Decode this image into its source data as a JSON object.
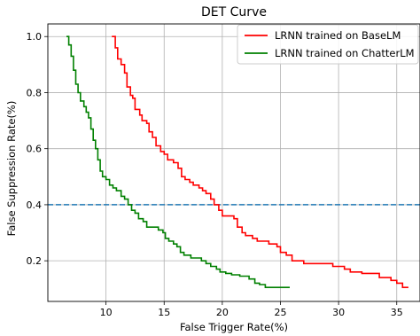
{
  "chart_data": {
    "type": "line",
    "title": "DET Curve",
    "xlabel": "False Trigger Rate(%)",
    "ylabel": "False Suppression Rate(%)",
    "xlim": [
      5.0,
      37.0
    ],
    "ylim": [
      0.055,
      1.045
    ],
    "xticks": [
      10,
      15,
      20,
      25,
      30,
      35
    ],
    "yticks": [
      0.2,
      0.4,
      0.6,
      0.8,
      1.0
    ],
    "xtick_labels": [
      "10",
      "15",
      "20",
      "25",
      "30",
      "35"
    ],
    "ytick_labels": [
      "0.2",
      "0.4",
      "0.6",
      "0.8",
      "1.0"
    ],
    "grid": true,
    "legend_position": "top-right",
    "threshold_line": {
      "y": 0.4,
      "color": "#1f77b4",
      "style": "dashed"
    },
    "series": [
      {
        "name": "LRNN trained on BaseLM",
        "color": "#ff0000",
        "points": [
          [
            10.5,
            1.0
          ],
          [
            10.8,
            0.96
          ],
          [
            11.0,
            0.92
          ],
          [
            11.3,
            0.9
          ],
          [
            11.6,
            0.87
          ],
          [
            11.8,
            0.82
          ],
          [
            12.1,
            0.79
          ],
          [
            12.3,
            0.78
          ],
          [
            12.5,
            0.74
          ],
          [
            12.9,
            0.72
          ],
          [
            13.1,
            0.7
          ],
          [
            13.5,
            0.69
          ],
          [
            13.7,
            0.66
          ],
          [
            14.0,
            0.64
          ],
          [
            14.3,
            0.61
          ],
          [
            14.7,
            0.59
          ],
          [
            15.0,
            0.58
          ],
          [
            15.3,
            0.56
          ],
          [
            15.8,
            0.55
          ],
          [
            16.2,
            0.53
          ],
          [
            16.5,
            0.5
          ],
          [
            16.8,
            0.49
          ],
          [
            17.2,
            0.48
          ],
          [
            17.5,
            0.47
          ],
          [
            18.0,
            0.46
          ],
          [
            18.3,
            0.45
          ],
          [
            18.6,
            0.44
          ],
          [
            19.0,
            0.42
          ],
          [
            19.3,
            0.4
          ],
          [
            19.7,
            0.38
          ],
          [
            20.0,
            0.36
          ],
          [
            20.5,
            0.36
          ],
          [
            21.0,
            0.35
          ],
          [
            21.3,
            0.32
          ],
          [
            21.7,
            0.3
          ],
          [
            22.0,
            0.29
          ],
          [
            22.6,
            0.28
          ],
          [
            23.0,
            0.27
          ],
          [
            23.6,
            0.27
          ],
          [
            24.0,
            0.26
          ],
          [
            24.7,
            0.25
          ],
          [
            25.0,
            0.23
          ],
          [
            25.5,
            0.22
          ],
          [
            26.0,
            0.2
          ],
          [
            26.5,
            0.2
          ],
          [
            27.0,
            0.19
          ],
          [
            28.0,
            0.19
          ],
          [
            29.0,
            0.19
          ],
          [
            29.5,
            0.18
          ],
          [
            30.0,
            0.18
          ],
          [
            30.5,
            0.17
          ],
          [
            31.0,
            0.16
          ],
          [
            31.5,
            0.16
          ],
          [
            32.0,
            0.155
          ],
          [
            33.0,
            0.155
          ],
          [
            33.5,
            0.14
          ],
          [
            34.0,
            0.14
          ],
          [
            34.5,
            0.13
          ],
          [
            35.0,
            0.12
          ],
          [
            35.5,
            0.105
          ],
          [
            36.0,
            0.105
          ]
        ]
      },
      {
        "name": "LRNN trained on ChatterLM",
        "color": "#008000",
        "points": [
          [
            6.6,
            1.0
          ],
          [
            6.8,
            0.97
          ],
          [
            7.0,
            0.93
          ],
          [
            7.2,
            0.88
          ],
          [
            7.4,
            0.83
          ],
          [
            7.6,
            0.8
          ],
          [
            7.8,
            0.77
          ],
          [
            8.1,
            0.75
          ],
          [
            8.3,
            0.73
          ],
          [
            8.5,
            0.71
          ],
          [
            8.7,
            0.67
          ],
          [
            8.9,
            0.63
          ],
          [
            9.1,
            0.6
          ],
          [
            9.3,
            0.56
          ],
          [
            9.5,
            0.52
          ],
          [
            9.7,
            0.5
          ],
          [
            10.0,
            0.49
          ],
          [
            10.3,
            0.47
          ],
          [
            10.6,
            0.46
          ],
          [
            10.9,
            0.45
          ],
          [
            11.3,
            0.43
          ],
          [
            11.6,
            0.42
          ],
          [
            11.9,
            0.4
          ],
          [
            12.2,
            0.38
          ],
          [
            12.5,
            0.37
          ],
          [
            12.8,
            0.35
          ],
          [
            13.2,
            0.34
          ],
          [
            13.5,
            0.32
          ],
          [
            14.0,
            0.32
          ],
          [
            14.5,
            0.31
          ],
          [
            14.9,
            0.3
          ],
          [
            15.1,
            0.28
          ],
          [
            15.4,
            0.27
          ],
          [
            15.8,
            0.26
          ],
          [
            16.1,
            0.25
          ],
          [
            16.4,
            0.23
          ],
          [
            16.7,
            0.22
          ],
          [
            17.3,
            0.21
          ],
          [
            17.8,
            0.21
          ],
          [
            18.2,
            0.2
          ],
          [
            18.6,
            0.19
          ],
          [
            19.0,
            0.18
          ],
          [
            19.5,
            0.17
          ],
          [
            19.8,
            0.16
          ],
          [
            20.3,
            0.155
          ],
          [
            20.8,
            0.15
          ],
          [
            21.5,
            0.145
          ],
          [
            22.3,
            0.135
          ],
          [
            22.8,
            0.12
          ],
          [
            23.2,
            0.115
          ],
          [
            23.7,
            0.105
          ],
          [
            24.5,
            0.105
          ],
          [
            25.2,
            0.105
          ],
          [
            25.8,
            0.105
          ]
        ]
      }
    ]
  }
}
